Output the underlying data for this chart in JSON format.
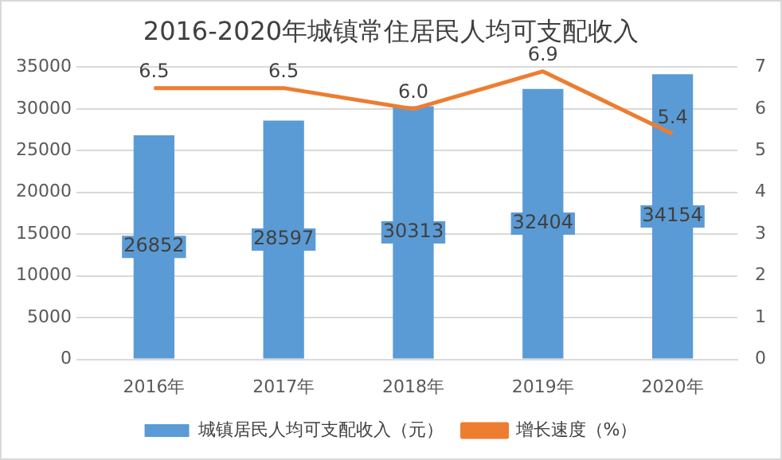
{
  "chart_data": {
    "type": "bar",
    "title": "2016-2020年城镇常住居民人均可支配收入",
    "categories": [
      "2016年",
      "2017年",
      "2018年",
      "2019年",
      "2020年"
    ],
    "series": [
      {
        "name": "城镇居民人均可支配收入（元）",
        "color": "#5b9bd5",
        "values": [
          26852,
          28597,
          30313,
          32404,
          34154
        ]
      },
      {
        "name": "增长速度（%）",
        "type": "line",
        "axis": "y2",
        "color": "#ed7d31",
        "marker": "none",
        "values": [
          6.5,
          6.5,
          6.0,
          6.9,
          5.4
        ],
        "value_labels": [
          "6.5",
          "6.5",
          "6.0",
          "6.9",
          "5.4"
        ]
      }
    ],
    "ylim": [
      0,
      35000
    ],
    "yticks": [
      0,
      5000,
      10000,
      15000,
      20000,
      25000,
      30000,
      35000
    ],
    "y2lim": [
      0,
      7
    ],
    "y2ticks": [
      0,
      1,
      2,
      3,
      4,
      5,
      6,
      7
    ],
    "grid": "y",
    "legend": "bottom",
    "data_labels": true
  }
}
